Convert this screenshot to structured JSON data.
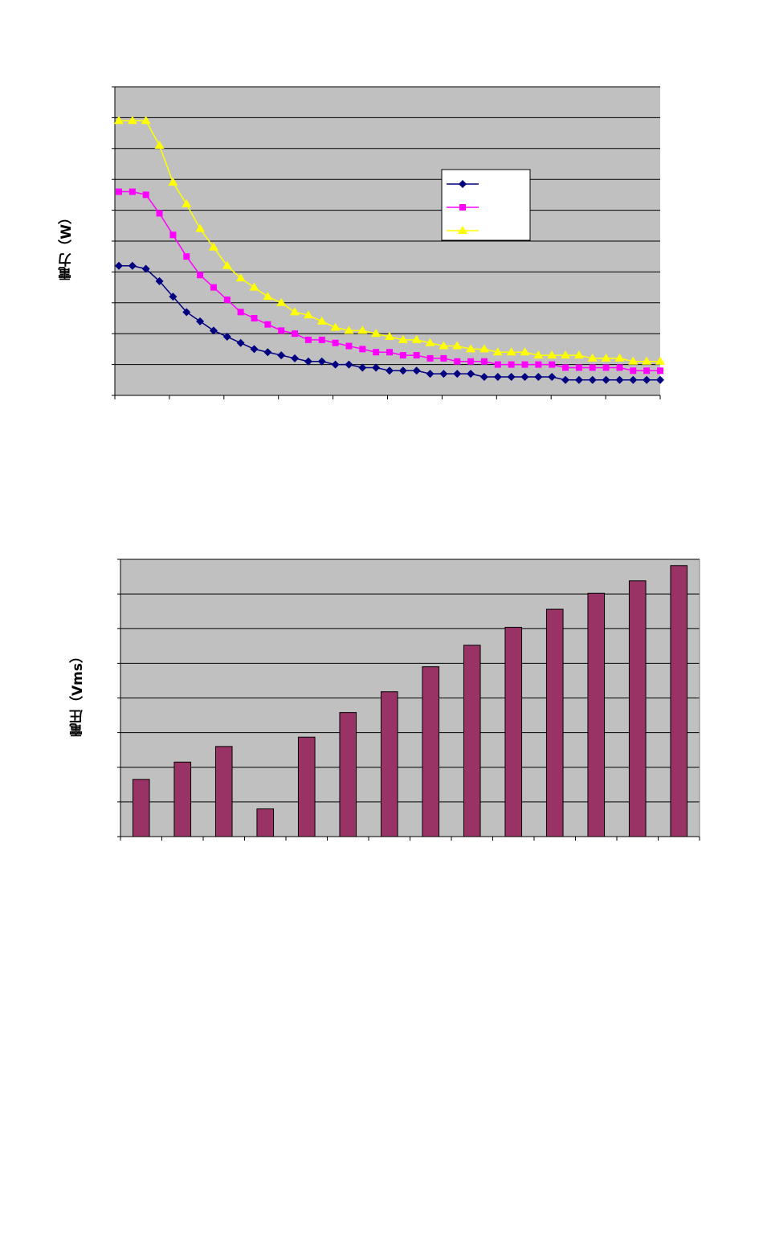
{
  "chart_data": [
    {
      "type": "line",
      "title": "",
      "xlabel": "",
      "ylabel": "電力（W）",
      "ylim": [
        0,
        10
      ],
      "grid": true,
      "legend": "right",
      "x": [
        1,
        2,
        3,
        4,
        5,
        6,
        7,
        8,
        9,
        10,
        11,
        12,
        13,
        14,
        15,
        16,
        17,
        18,
        19,
        20,
        21,
        22,
        23,
        24,
        25,
        26,
        27,
        28,
        29,
        30,
        31,
        32,
        33,
        34,
        35,
        36,
        37,
        38,
        39,
        40,
        41
      ],
      "series": [
        {
          "color": "#000080",
          "marker": "diamond",
          "values": [
            4.2,
            4.2,
            4.1,
            3.7,
            3.2,
            2.7,
            2.4,
            2.1,
            1.9,
            1.7,
            1.5,
            1.4,
            1.3,
            1.2,
            1.1,
            1.1,
            1.0,
            1.0,
            0.9,
            0.9,
            0.8,
            0.8,
            0.8,
            0.7,
            0.7,
            0.7,
            0.7,
            0.6,
            0.6,
            0.6,
            0.6,
            0.6,
            0.6,
            0.5,
            0.5,
            0.5,
            0.5,
            0.5,
            0.5,
            0.5,
            0.5
          ]
        },
        {
          "color": "#ff00ff",
          "marker": "square",
          "values": [
            6.6,
            6.6,
            6.5,
            5.9,
            5.2,
            4.5,
            3.9,
            3.5,
            3.1,
            2.7,
            2.5,
            2.3,
            2.1,
            2.0,
            1.8,
            1.8,
            1.7,
            1.6,
            1.5,
            1.4,
            1.4,
            1.3,
            1.3,
            1.2,
            1.2,
            1.1,
            1.1,
            1.1,
            1.0,
            1.0,
            1.0,
            1.0,
            1.0,
            0.9,
            0.9,
            0.9,
            0.9,
            0.9,
            0.8,
            0.8,
            0.8
          ]
        },
        {
          "color": "#ffff00",
          "marker": "triangle",
          "values": [
            8.9,
            8.9,
            8.9,
            8.1,
            6.9,
            6.2,
            5.4,
            4.8,
            4.2,
            3.8,
            3.5,
            3.2,
            3.0,
            2.7,
            2.6,
            2.4,
            2.2,
            2.1,
            2.1,
            2.0,
            1.9,
            1.8,
            1.8,
            1.7,
            1.6,
            1.6,
            1.5,
            1.5,
            1.4,
            1.4,
            1.4,
            1.3,
            1.3,
            1.3,
            1.3,
            1.2,
            1.2,
            1.2,
            1.1,
            1.1,
            1.1
          ]
        }
      ]
    },
    {
      "type": "bar",
      "title": "",
      "xlabel": "",
      "ylabel": "電圧（Vms）",
      "ylim": [
        0,
        8
      ],
      "grid": true,
      "color": "#993366",
      "categories": [
        "",
        "",
        "",
        "",
        "",
        "",
        "",
        "",
        "",
        "",
        "",
        "",
        "",
        ""
      ],
      "values": [
        1.65,
        2.15,
        2.6,
        0.8,
        2.87,
        3.58,
        4.18,
        4.9,
        5.52,
        6.04,
        6.56,
        7.02,
        7.38,
        7.82
      ]
    }
  ]
}
